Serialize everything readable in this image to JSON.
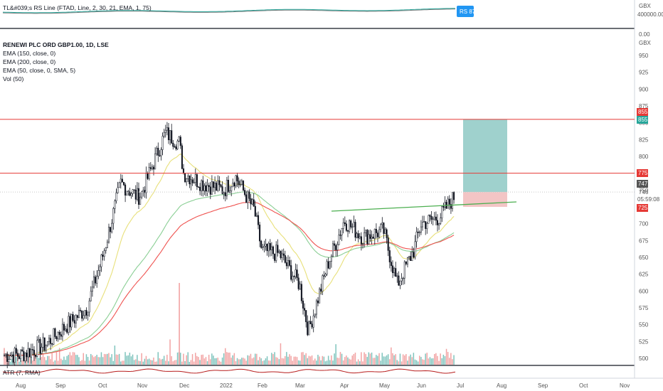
{
  "rs_pane": {
    "title": "TL&#039;s RS Line (FTAD, Line, 2, 30, 21, EMA, 1, 75)",
    "badge": "RS 87",
    "axis_labels": [
      "GBX",
      "400000.00",
      "0.00"
    ]
  },
  "main_pane": {
    "symbol": "RENEWI PLC ORD GBP1.00, 1D, LSE",
    "indicators": [
      "EMA (150, close, 0)",
      "EMA (200, close, 0)",
      "EMA (50, close, 0, SMA, 5)",
      "Vol (50)"
    ],
    "currency": "GBX",
    "price_ticks": [
      "950",
      "925",
      "900",
      "875",
      "850",
      "825",
      "800",
      "775",
      "750",
      "725",
      "700",
      "675",
      "650",
      "625",
      "600",
      "575",
      "550",
      "525",
      "500"
    ],
    "tags": {
      "upper_red": "855",
      "upper_blue": "855",
      "resistance": "775",
      "last_price": "747",
      "current": "746",
      "countdown": "05:59:08",
      "stop": "725"
    }
  },
  "atr_pane": {
    "title": "ATR (7, RMA)"
  },
  "x_axis": [
    "Aug",
    "Sep",
    "Oct",
    "Nov",
    "Dec",
    "2022",
    "Feb",
    "Mar",
    "Apr",
    "May",
    "Jun",
    "Jul",
    "Aug",
    "Sep",
    "Oct",
    "Nov"
  ],
  "colors": {
    "up": "#26a69a",
    "down": "#131722",
    "ema50": "#e8e07a",
    "ema150": "#8bcf95",
    "ema200": "#ef5350",
    "rs_line": "#26a69a",
    "hline": "#e53935",
    "trendline": "#4caf50",
    "target_zone": "#9fd1cd",
    "stop_zone": "#f3c5c5",
    "badge": "#2196f3"
  },
  "chart_data": {
    "type": "candlestick",
    "ylim": [
      490,
      960
    ],
    "months": [
      "Aug",
      "Sep",
      "Oct",
      "Nov",
      "Dec",
      "2022",
      "Feb",
      "Mar",
      "Apr",
      "May",
      "Jun",
      "Jul",
      "Aug",
      "Sep",
      "Oct",
      "Nov"
    ],
    "close_series": [
      {
        "date": "2021-08",
        "value": 505
      },
      {
        "date": "2021-08-20",
        "value": 520
      },
      {
        "date": "2021-09",
        "value": 540
      },
      {
        "date": "2021-09-20",
        "value": 575
      },
      {
        "date": "2021-10",
        "value": 650
      },
      {
        "date": "2021-10-15",
        "value": 760
      },
      {
        "date": "2021-10-28",
        "value": 740
      },
      {
        "date": "2021-11",
        "value": 745
      },
      {
        "date": "2021-11-18",
        "value": 835
      },
      {
        "date": "2021-11-28",
        "value": 820
      },
      {
        "date": "2021-12",
        "value": 775
      },
      {
        "date": "2021-12-15",
        "value": 760
      },
      {
        "date": "2021-12-31",
        "value": 750
      },
      {
        "date": "2022-01-10",
        "value": 770
      },
      {
        "date": "2022-01-25",
        "value": 720
      },
      {
        "date": "2022-02",
        "value": 660
      },
      {
        "date": "2022-02-15",
        "value": 655
      },
      {
        "date": "2022-03",
        "value": 610
      },
      {
        "date": "2022-03-07",
        "value": 540
      },
      {
        "date": "2022-03-20",
        "value": 640
      },
      {
        "date": "2022-04",
        "value": 705
      },
      {
        "date": "2022-04-15",
        "value": 680
      },
      {
        "date": "2022-05",
        "value": 690
      },
      {
        "date": "2022-05-12",
        "value": 610
      },
      {
        "date": "2022-05-25",
        "value": 660
      },
      {
        "date": "2022-06",
        "value": 700
      },
      {
        "date": "2022-06-15",
        "value": 710
      },
      {
        "date": "2022-06-28",
        "value": 746
      }
    ],
    "levels": {
      "resistance_high": 855,
      "resistance_mid": 775,
      "target": 855,
      "entry": 747,
      "stop": 725
    },
    "annotations": [
      "ascending trendline from ~Apr to Jul",
      "long position box (entry 747, target 855, stop 725)"
    ]
  }
}
